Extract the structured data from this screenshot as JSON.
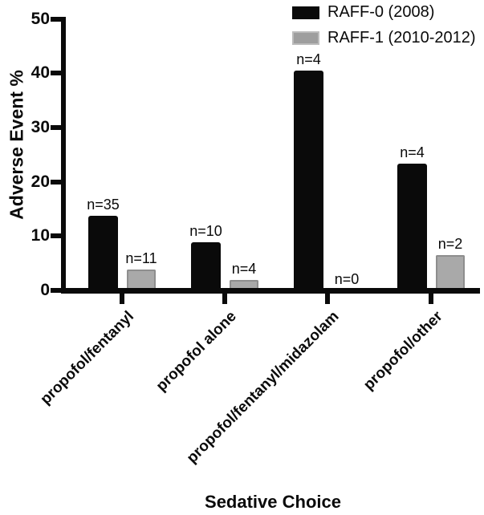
{
  "figure": {
    "background": "#ffffff",
    "text_color": "#0a0a0a"
  },
  "chart_data": {
    "type": "bar",
    "title": "",
    "xlabel": "Sedative Choice",
    "ylabel": "Adverse Event %",
    "ylim": [
      0,
      50
    ],
    "yticks": [
      0,
      10,
      20,
      30,
      40,
      50
    ],
    "grid": false,
    "legend_position": "top-right",
    "categories": [
      "propofol/fentanyl",
      "propofol alone",
      "propofol/fentanyl/midazolam",
      "propofol/other"
    ],
    "series": [
      {
        "name": "RAFF-0 (2008)",
        "color": "#0a0a0a",
        "values": [
          13.8,
          8.8,
          40.4,
          23.3
        ],
        "bar_labels": [
          "n=35",
          "n=10",
          "n=4",
          "n=4"
        ]
      },
      {
        "name": "RAFF-1 (2010-2012)",
        "color": "#a9a9a9",
        "border_color": "#8e8e8e",
        "values": [
          3.9,
          1.9,
          0,
          6.5
        ],
        "bar_labels": [
          "n=11",
          "n=4",
          "n=0",
          "n=2"
        ]
      }
    ]
  }
}
